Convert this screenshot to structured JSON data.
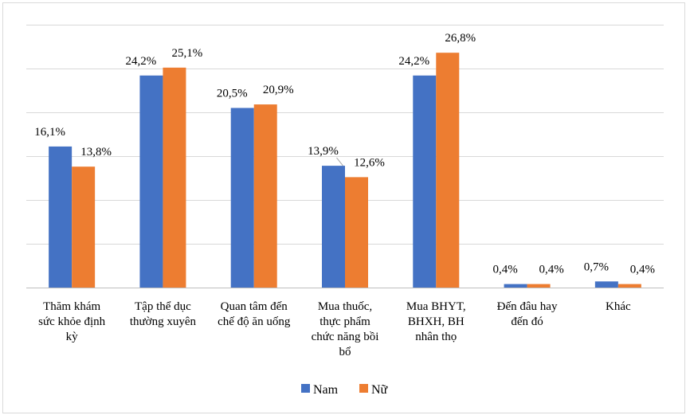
{
  "chart_data": {
    "type": "bar",
    "title": "",
    "xlabel": "",
    "ylabel": "",
    "ylim": [
      0,
      30
    ],
    "grid": true,
    "legend_position": "bottom",
    "categories": [
      [
        "Thăm khám",
        "sức khỏe định",
        "kỳ"
      ],
      [
        "Tập thể dục",
        "thường xuyên"
      ],
      [
        "Quan tâm đến",
        "chế độ ăn uống"
      ],
      [
        "Mua thuốc,",
        "thực phẩm",
        "chức năng bồi",
        "bổ"
      ],
      [
        "Mua BHYT,",
        "BHXH, BH",
        "nhân thọ"
      ],
      [
        "Đến đâu hay",
        "đến đó"
      ],
      [
        "Khác"
      ]
    ],
    "series": [
      {
        "name": "Nam",
        "color": "#4472C4",
        "values": [
          16.1,
          24.2,
          20.5,
          13.9,
          24.2,
          0.4,
          0.7
        ],
        "labels": [
          "16,1%",
          "24,2%",
          "20,5%",
          "13,9%",
          "24,2%",
          "0,4%",
          "0,7%"
        ]
      },
      {
        "name": "Nữ",
        "color": "#ED7D31",
        "values": [
          13.8,
          25.1,
          20.9,
          12.6,
          26.8,
          0.4,
          0.4
        ],
        "labels": [
          "13,8%",
          "25,1%",
          "20,9%",
          "12,6%",
          "26,8%",
          "0,4%",
          "0,4%"
        ]
      }
    ]
  }
}
